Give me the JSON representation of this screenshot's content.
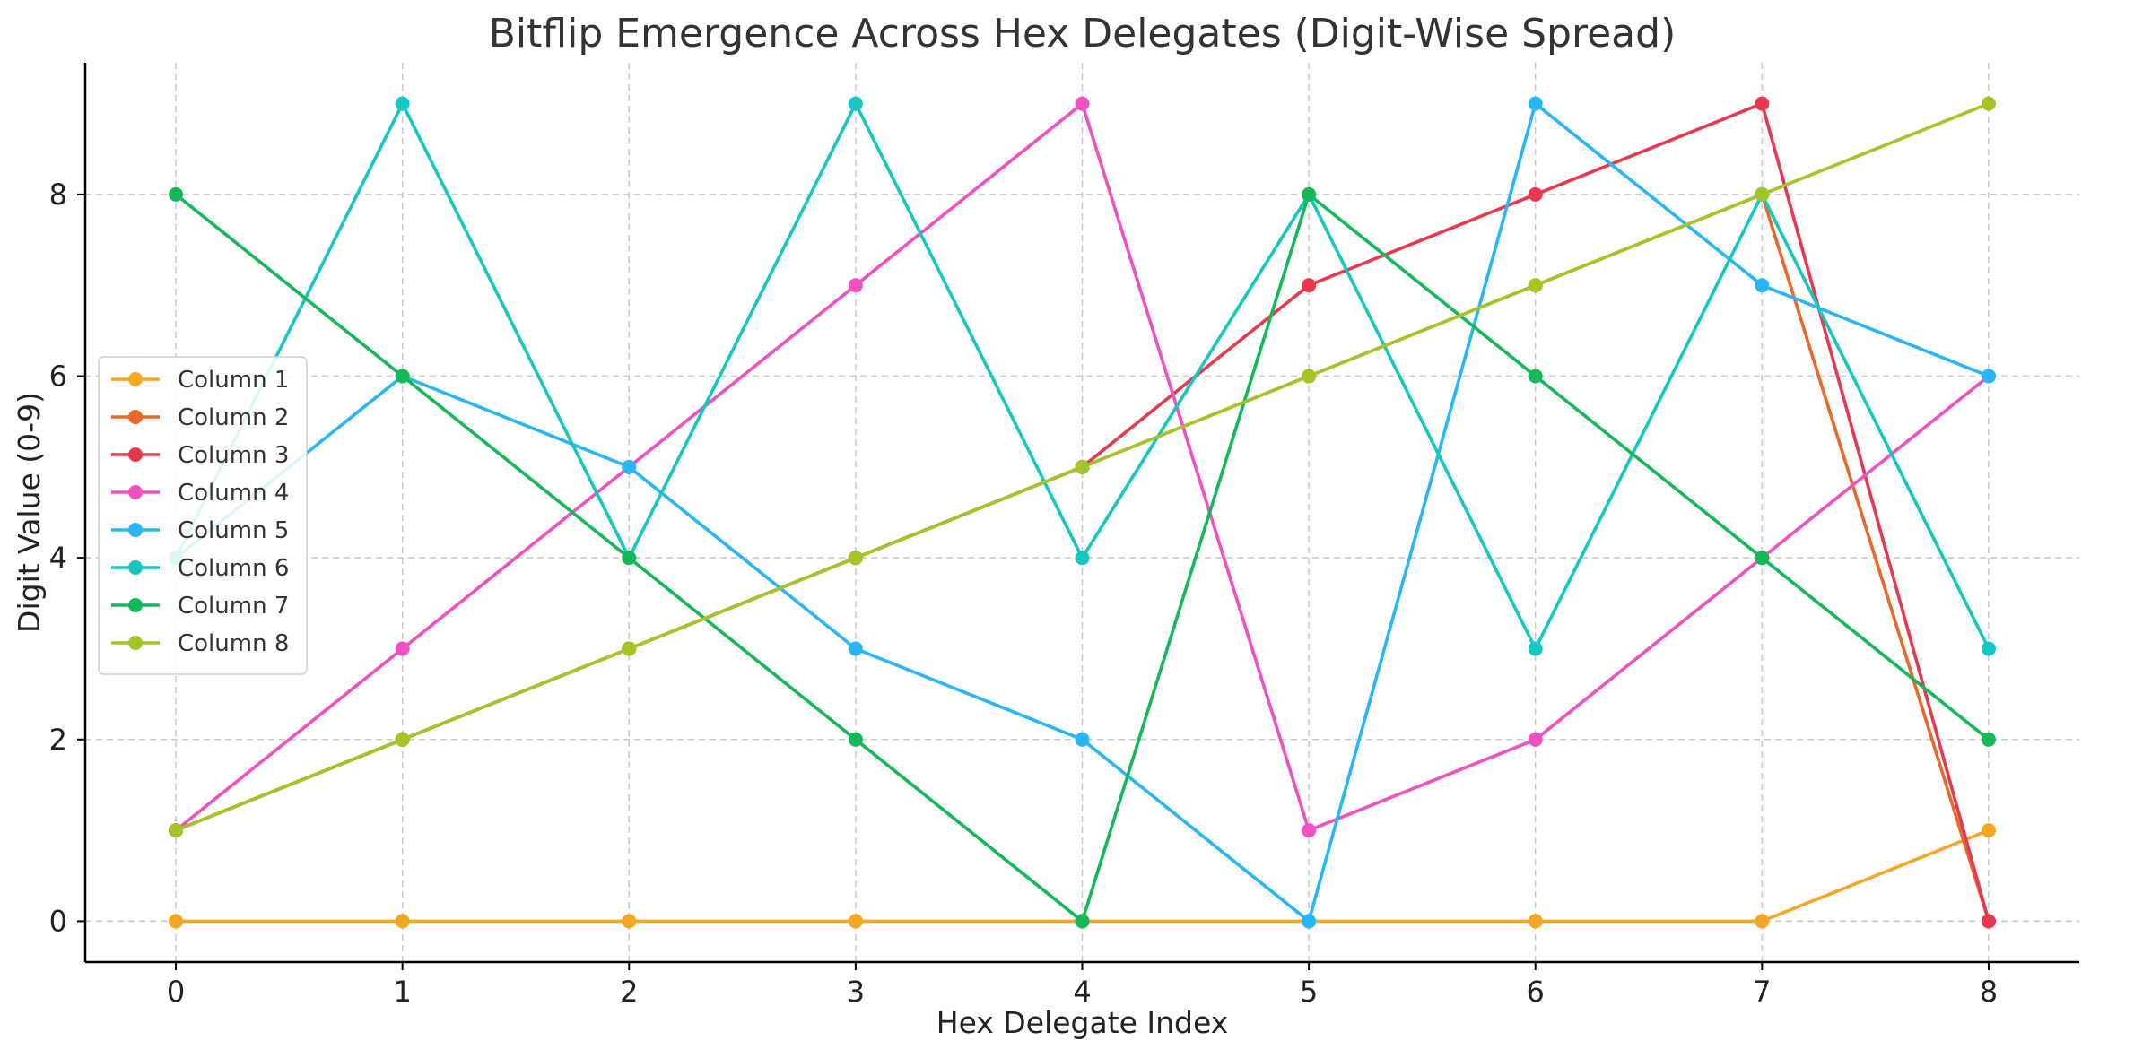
{
  "chart_data": {
    "type": "line",
    "title": "Bitflip Emergence Across Hex Delegates (Digit-Wise Spread)",
    "xlabel": "Hex Delegate Index",
    "ylabel": "Digit Value (0-9)",
    "x": [
      0,
      1,
      2,
      3,
      4,
      5,
      6,
      7,
      8
    ],
    "xticks": [
      "0",
      "1",
      "2",
      "3",
      "4",
      "5",
      "6",
      "7",
      "8"
    ],
    "yticks": [
      "0",
      "2",
      "4",
      "6",
      "8"
    ],
    "xlim": [
      -0.4,
      8.4
    ],
    "ylim": [
      -0.45,
      9.45
    ],
    "grid": true,
    "legend_position": "center-left",
    "series": [
      {
        "name": "Column 1",
        "color": "#f5a623",
        "values": [
          0,
          0,
          0,
          0,
          0,
          0,
          0,
          0,
          1
        ]
      },
      {
        "name": "Column 2",
        "color": "#e8692a",
        "values": [
          1,
          2,
          3,
          4,
          5,
          6,
          7,
          8,
          0
        ]
      },
      {
        "name": "Column 3",
        "color": "#e8384f",
        "values": [
          1,
          2,
          3,
          4,
          5,
          7,
          8,
          9,
          0
        ]
      },
      {
        "name": "Column 4",
        "color": "#f050c0",
        "values": [
          1,
          3,
          5,
          7,
          9,
          1,
          2,
          4,
          6
        ]
      },
      {
        "name": "Column 5",
        "color": "#29b6f6",
        "values": [
          4,
          6,
          5,
          3,
          2,
          0,
          9,
          7,
          6
        ]
      },
      {
        "name": "Column 6",
        "color": "#14c7c0",
        "values": [
          4,
          9,
          4,
          9,
          4,
          8,
          3,
          8,
          3
        ]
      },
      {
        "name": "Column 7",
        "color": "#14b856",
        "values": [
          8,
          6,
          4,
          2,
          0,
          8,
          6,
          4,
          2
        ]
      },
      {
        "name": "Column 8",
        "color": "#a3c526",
        "values": [
          1,
          2,
          3,
          4,
          5,
          6,
          7,
          8,
          9
        ]
      }
    ]
  }
}
